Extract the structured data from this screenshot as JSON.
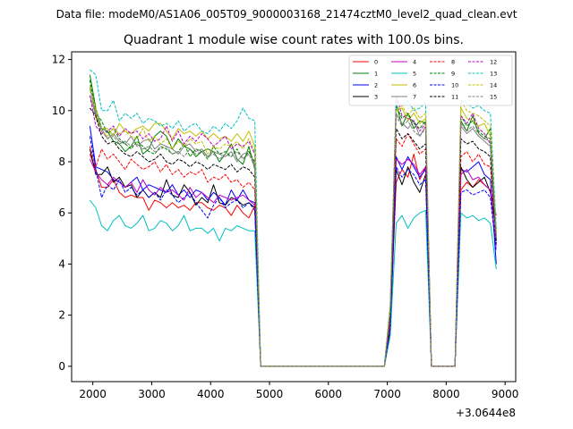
{
  "chart_data": {
    "type": "line",
    "suptitle": "Data file: modeM0/AS1A06_005T09_9000003168_21474cztM0_level2_quad_clean.evt",
    "title": "Quadrant 1 module wise count rates with 100.0s bins.",
    "xlabel": "",
    "ylabel": "",
    "x_offset_label": "+3.0644e8",
    "xlim": [
      1640,
      9180
    ],
    "ylim": [
      -0.6,
      12.3
    ],
    "xticks": [
      2000,
      3000,
      4000,
      5000,
      6000,
      7000,
      8000,
      9000
    ],
    "yticks": [
      0,
      2,
      4,
      6,
      8,
      10,
      12
    ],
    "legend_position": "top-right",
    "x": [
      1950,
      2050,
      2150,
      2250,
      2350,
      2450,
      2550,
      2650,
      2750,
      2850,
      2950,
      3050,
      3150,
      3250,
      3350,
      3450,
      3550,
      3650,
      3750,
      3850,
      3950,
      4050,
      4150,
      4250,
      4350,
      4450,
      4550,
      4650,
      4750,
      4850,
      4950,
      5050,
      5150,
      5250,
      5350,
      5450,
      5550,
      5650,
      5750,
      5850,
      5950,
      6050,
      6150,
      6250,
      6350,
      6450,
      6550,
      6650,
      6750,
      6850,
      6950,
      7050,
      7150,
      7250,
      7350,
      7450,
      7550,
      7650,
      7750,
      7850,
      7950,
      8050,
      8150,
      8250,
      8350,
      8450,
      8550,
      8650,
      8750,
      8850
    ],
    "series": [
      {
        "name": "0",
        "color": "#ff0000",
        "dashed": false,
        "values": [
          8.3,
          7.7,
          7.0,
          7.0,
          7.3,
          6.8,
          6.6,
          6.7,
          6.6,
          6.6,
          6.1,
          6.5,
          6.4,
          6.2,
          6.4,
          6.2,
          6.3,
          6.1,
          6.4,
          6.4,
          6.2,
          6.1,
          6.3,
          6.2,
          5.9,
          6.3,
          6.0,
          5.8,
          6.3,
          0.0,
          0,
          0,
          0,
          0,
          0,
          0,
          0,
          0,
          0,
          0,
          0,
          0,
          0,
          0,
          0,
          0,
          0,
          0,
          0,
          0,
          0,
          1.6,
          7.2,
          7.7,
          7.4,
          8.3,
          7.3,
          7.8,
          0.0,
          0,
          0,
          0,
          0,
          6.9,
          7.2,
          7.0,
          7.3,
          7.1,
          6.9,
          5.9
        ]
      },
      {
        "name": "1",
        "color": "#008000",
        "dashed": false,
        "values": [
          11.4,
          10.1,
          9.3,
          9.2,
          8.8,
          8.7,
          8.4,
          8.6,
          9.0,
          8.3,
          8.5,
          9.0,
          9.2,
          9.0,
          8.5,
          8.9,
          8.6,
          8.5,
          8.2,
          8.4,
          8.5,
          8.4,
          8.0,
          8.3,
          8.7,
          8.1,
          7.9,
          8.6,
          7.7,
          0.0,
          0,
          0,
          0,
          0,
          0,
          0,
          0,
          0,
          0,
          0,
          0,
          0,
          0,
          0,
          0,
          0,
          0,
          0,
          0,
          0,
          0,
          2.2,
          10.3,
          9.4,
          9.9,
          9.3,
          9.6,
          9.5,
          0.0,
          0,
          0,
          0,
          0,
          9.6,
          9.2,
          9.8,
          9.1,
          8.9,
          9.3,
          4.9
        ]
      },
      {
        "name": "2",
        "color": "#0000ff",
        "dashed": false,
        "values": [
          9.4,
          7.8,
          7.7,
          7.6,
          7.3,
          7.2,
          7.0,
          7.2,
          7.4,
          6.9,
          7.1,
          7.0,
          6.9,
          6.8,
          7.1,
          6.7,
          6.9,
          6.6,
          6.9,
          6.8,
          6.5,
          6.8,
          6.6,
          6.3,
          6.9,
          6.5,
          6.9,
          6.5,
          6.4,
          0.0,
          0,
          0,
          0,
          0,
          0,
          0,
          0,
          0,
          0,
          0,
          0,
          0,
          0,
          0,
          0,
          0,
          0,
          0,
          0,
          0,
          0,
          1.5,
          8.2,
          7.7,
          8.2,
          7.8,
          7.4,
          7.7,
          0.0,
          0,
          0,
          0,
          0,
          7.7,
          7.6,
          7.8,
          8.0,
          7.5,
          7.3,
          4.0
        ]
      },
      {
        "name": "3",
        "color": "#000000",
        "dashed": false,
        "values": [
          8.5,
          7.5,
          7.5,
          7.8,
          7.2,
          7.4,
          7.0,
          7.1,
          6.6,
          6.9,
          6.6,
          6.8,
          6.6,
          7.3,
          6.7,
          6.6,
          7.1,
          6.8,
          6.3,
          6.6,
          6.4,
          7.1,
          6.4,
          6.3,
          6.6,
          6.5,
          6.3,
          6.4,
          6.2,
          0.0,
          0,
          0,
          0,
          0,
          0,
          0,
          0,
          0,
          0,
          0,
          0,
          0,
          0,
          0,
          0,
          0,
          0,
          0,
          0,
          0,
          0,
          1.4,
          7.7,
          7.1,
          7.8,
          7.2,
          6.8,
          7.5,
          0.0,
          0,
          0,
          0,
          0,
          7.8,
          7.3,
          7.0,
          7.2,
          7.4,
          6.8,
          5.4
        ]
      },
      {
        "name": "4",
        "color": "#c000c0",
        "dashed": false,
        "values": [
          8.1,
          7.6,
          7.3,
          7.1,
          7.4,
          7.2,
          7.0,
          7.2,
          6.8,
          7.3,
          6.9,
          6.7,
          7.0,
          6.8,
          6.9,
          6.7,
          6.5,
          7.0,
          6.6,
          6.8,
          6.6,
          6.4,
          6.7,
          6.6,
          6.5,
          6.6,
          6.7,
          6.5,
          6.3,
          0.0,
          0,
          0,
          0,
          0,
          0,
          0,
          0,
          0,
          0,
          0,
          0,
          0,
          0,
          0,
          0,
          0,
          0,
          0,
          0,
          0,
          0,
          1.6,
          8.1,
          7.9,
          8.1,
          7.9,
          7.5,
          7.8,
          0.0,
          0,
          0,
          0,
          0,
          7.5,
          7.7,
          7.3,
          7.4,
          7.1,
          6.9,
          4.7
        ]
      },
      {
        "name": "5",
        "color": "#00bfbf",
        "dashed": false,
        "values": [
          6.5,
          6.2,
          5.5,
          5.3,
          5.7,
          5.9,
          5.5,
          5.4,
          5.6,
          5.9,
          5.3,
          5.4,
          5.7,
          5.6,
          5.3,
          5.5,
          5.9,
          5.3,
          5.4,
          5.4,
          5.2,
          5.4,
          4.9,
          5.4,
          5.3,
          5.5,
          5.4,
          5.3,
          5.3,
          0.0,
          0,
          0,
          0,
          0,
          0,
          0,
          0,
          0,
          0,
          0,
          0,
          0,
          0,
          0,
          0,
          0,
          0,
          0,
          0,
          0,
          0,
          1.2,
          5.6,
          5.9,
          5.4,
          5.8,
          6.0,
          6.1,
          0.0,
          0,
          0,
          0,
          0,
          6.0,
          5.8,
          5.9,
          5.7,
          5.8,
          5.6,
          3.8
        ]
      },
      {
        "name": "6",
        "color": "#bfbf00",
        "dashed": false,
        "values": [
          11.0,
          9.7,
          9.3,
          9.3,
          9.0,
          9.5,
          9.2,
          9.1,
          9.3,
          9.4,
          9.2,
          9.5,
          9.5,
          9.2,
          8.9,
          9.3,
          9.1,
          9.2,
          9.0,
          9.2,
          8.9,
          9.1,
          8.9,
          9.0,
          8.8,
          9.1,
          8.8,
          9.2,
          8.6,
          0.0,
          0,
          0,
          0,
          0,
          0,
          0,
          0,
          0,
          0,
          0,
          0,
          0,
          0,
          0,
          0,
          0,
          0,
          0,
          0,
          0,
          0,
          2.3,
          10.0,
          10.1,
          9.6,
          9.9,
          9.5,
          9.7,
          0.0,
          0,
          0,
          0,
          0,
          10.1,
          9.7,
          9.6,
          9.4,
          9.5,
          9.0,
          5.1
        ]
      },
      {
        "name": "7",
        "color": "#808080",
        "dashed": false,
        "values": [
          10.6,
          9.8,
          9.3,
          8.9,
          9.1,
          8.8,
          8.7,
          9.0,
          8.6,
          8.8,
          8.9,
          8.5,
          8.7,
          8.6,
          8.5,
          8.3,
          8.6,
          8.7,
          8.4,
          8.5,
          8.2,
          8.4,
          8.3,
          8.2,
          8.4,
          8.0,
          8.3,
          8.4,
          7.9,
          0.0,
          0,
          0,
          0,
          0,
          0,
          0,
          0,
          0,
          0,
          0,
          0,
          0,
          0,
          0,
          0,
          0,
          0,
          0,
          0,
          0,
          0,
          2.1,
          9.9,
          9.5,
          9.3,
          9.6,
          9.0,
          9.4,
          0.0,
          0,
          0,
          0,
          0,
          9.4,
          9.1,
          9.3,
          9.0,
          8.8,
          8.6,
          4.9
        ]
      },
      {
        "name": "8",
        "color": "#ff0000",
        "dashed": true,
        "values": [
          8.6,
          7.8,
          8.5,
          8.1,
          8.3,
          8.0,
          7.7,
          8.1,
          7.9,
          7.7,
          7.8,
          8.0,
          7.6,
          7.9,
          7.5,
          7.7,
          7.4,
          7.6,
          7.5,
          7.7,
          7.2,
          7.4,
          7.3,
          7.5,
          7.2,
          7.3,
          7.0,
          7.2,
          6.9,
          0.0,
          0,
          0,
          0,
          0,
          0,
          0,
          0,
          0,
          0,
          0,
          0,
          0,
          0,
          0,
          0,
          0,
          0,
          0,
          0,
          0,
          0,
          1.8,
          8.9,
          8.6,
          9.1,
          8.7,
          8.3,
          8.5,
          0.0,
          0,
          0,
          0,
          0,
          8.2,
          8.4,
          8.0,
          8.3,
          7.9,
          7.8,
          5.2
        ]
      },
      {
        "name": "9",
        "color": "#008000",
        "dashed": true,
        "values": [
          11.2,
          9.9,
          9.6,
          9.1,
          9.3,
          8.9,
          8.7,
          8.5,
          8.8,
          8.6,
          8.4,
          8.3,
          8.6,
          8.5,
          8.3,
          8.4,
          8.7,
          8.2,
          8.5,
          8.4,
          8.1,
          8.6,
          8.3,
          8.4,
          8.2,
          8.5,
          8.1,
          8.4,
          8.0,
          0.0,
          0,
          0,
          0,
          0,
          0,
          0,
          0,
          0,
          0,
          0,
          0,
          0,
          0,
          0,
          0,
          0,
          0,
          0,
          0,
          0,
          0,
          2.2,
          10.2,
          9.7,
          9.9,
          9.5,
          9.3,
          9.6,
          0.0,
          0,
          0,
          0,
          0,
          9.8,
          9.4,
          9.6,
          9.2,
          9.0,
          8.9,
          5.0
        ]
      },
      {
        "name": "10",
        "color": "#0000ff",
        "dashed": true,
        "values": [
          9.0,
          7.7,
          6.6,
          7.1,
          6.9,
          7.3,
          6.8,
          7.0,
          6.7,
          6.9,
          6.6,
          6.8,
          6.5,
          6.9,
          6.7,
          6.4,
          6.6,
          6.8,
          6.4,
          6.1,
          5.8,
          6.3,
          6.6,
          6.2,
          6.4,
          6.5,
          6.2,
          6.4,
          6.1,
          0.0,
          0,
          0,
          0,
          0,
          0,
          0,
          0,
          0,
          0,
          0,
          0,
          0,
          0,
          0,
          0,
          0,
          0,
          0,
          0,
          0,
          0,
          1.5,
          7.8,
          7.4,
          7.7,
          7.5,
          7.1,
          7.3,
          0.0,
          0,
          0,
          0,
          0,
          6.8,
          6.9,
          6.7,
          6.8,
          6.9,
          6.6,
          4.5
        ]
      },
      {
        "name": "11",
        "color": "#000000",
        "dashed": true,
        "values": [
          10.1,
          9.8,
          9.0,
          8.7,
          8.8,
          8.5,
          8.3,
          8.2,
          8.4,
          8.2,
          8.0,
          8.1,
          8.3,
          8.0,
          7.9,
          8.1,
          8.0,
          7.8,
          8.0,
          7.9,
          7.7,
          7.9,
          7.8,
          7.7,
          7.9,
          7.6,
          7.8,
          7.7,
          7.4,
          0.0,
          0,
          0,
          0,
          0,
          0,
          0,
          0,
          0,
          0,
          0,
          0,
          0,
          0,
          0,
          0,
          0,
          0,
          0,
          0,
          0,
          0,
          2.0,
          9.3,
          8.9,
          9.1,
          8.8,
          8.5,
          8.7,
          0.0,
          0,
          0,
          0,
          0,
          8.9,
          8.7,
          8.8,
          8.5,
          8.4,
          8.2,
          4.8
        ]
      },
      {
        "name": "12",
        "color": "#c000c0",
        "dashed": true,
        "values": [
          10.6,
          9.4,
          9.1,
          9.2,
          9.4,
          9.0,
          9.3,
          9.1,
          9.2,
          8.9,
          9.1,
          8.8,
          8.9,
          9.4,
          8.8,
          9.2,
          8.7,
          9.0,
          8.8,
          9.1,
          8.9,
          8.6,
          8.8,
          9.0,
          8.5,
          8.7,
          8.6,
          8.8,
          8.3,
          0.0,
          0,
          0,
          0,
          0,
          0,
          0,
          0,
          0,
          0,
          0,
          0,
          0,
          0,
          0,
          0,
          0,
          0,
          0,
          0,
          0,
          0,
          2.3,
          10.6,
          9.8,
          9.7,
          9.6,
          9.2,
          9.5,
          0.0,
          0,
          0,
          0,
          0,
          9.8,
          9.5,
          9.9,
          9.3,
          9.1,
          8.7,
          5.1
        ]
      },
      {
        "name": "13",
        "color": "#00bfbf",
        "dashed": true,
        "values": [
          11.6,
          11.4,
          10.0,
          10.0,
          10.4,
          9.6,
          9.9,
          9.7,
          9.9,
          9.5,
          9.7,
          9.6,
          9.4,
          9.5,
          9.3,
          9.6,
          9.2,
          9.4,
          9.5,
          9.2,
          9.1,
          9.4,
          9.2,
          9.5,
          9.3,
          9.6,
          10.1,
          9.7,
          9.6,
          0.0,
          0,
          0,
          0,
          0,
          0,
          0,
          0,
          0,
          0,
          0,
          0,
          0,
          0,
          0,
          0,
          0,
          0,
          0,
          0,
          0,
          0,
          2.5,
          10.3,
          10.2,
          10.4,
          10.0,
          10.1,
          10.3,
          0.0,
          0,
          0,
          0,
          0,
          10.4,
          10.3,
          10.1,
          10.2,
          10.0,
          9.9,
          5.4
        ]
      },
      {
        "name": "14",
        "color": "#bfbf00",
        "dashed": true,
        "values": [
          10.8,
          10.1,
          9.2,
          9.0,
          9.3,
          9.1,
          9.2,
          9.0,
          8.9,
          9.3,
          8.8,
          9.0,
          8.7,
          8.9,
          8.5,
          8.8,
          8.6,
          8.9,
          8.7,
          8.8,
          8.3,
          8.6,
          8.5,
          8.7,
          8.6,
          8.8,
          8.5,
          8.9,
          8.4,
          0.0,
          0,
          0,
          0,
          0,
          0,
          0,
          0,
          0,
          0,
          0,
          0,
          0,
          0,
          0,
          0,
          0,
          0,
          0,
          0,
          0,
          0,
          2.4,
          10.0,
          10.2,
          9.8,
          10.1,
          9.7,
          9.9,
          0.0,
          0,
          0,
          0,
          0,
          10.4,
          10.0,
          9.9,
          9.8,
          9.6,
          9.4,
          5.2
        ]
      },
      {
        "name": "15",
        "color": "#808080",
        "dashed": true,
        "values": [
          10.9,
          9.9,
          9.2,
          8.9,
          9.0,
          8.7,
          8.8,
          8.6,
          8.7,
          8.5,
          8.6,
          8.4,
          8.5,
          8.6,
          8.3,
          8.4,
          8.2,
          8.5,
          8.3,
          8.4,
          8.2,
          8.3,
          8.1,
          8.3,
          8.2,
          8.4,
          8.1,
          8.3,
          7.8,
          0.0,
          0,
          0,
          0,
          0,
          0,
          0,
          0,
          0,
          0,
          0,
          0,
          0,
          0,
          0,
          0,
          0,
          0,
          0,
          0,
          0,
          0,
          2.1,
          9.8,
          9.4,
          9.6,
          9.2,
          9.0,
          9.3,
          0.0,
          0,
          0,
          0,
          0,
          9.5,
          9.2,
          9.4,
          9.1,
          8.9,
          8.8,
          5.0
        ]
      }
    ]
  }
}
